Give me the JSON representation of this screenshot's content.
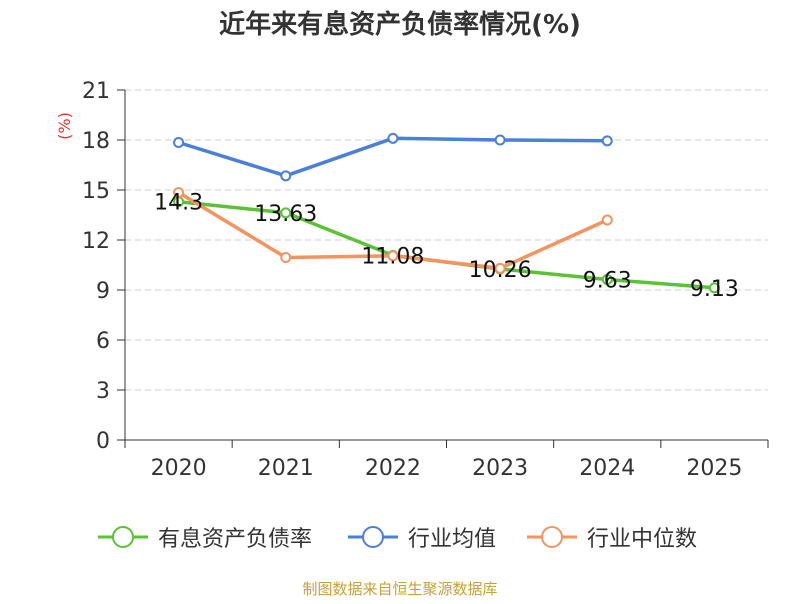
{
  "chart_data": {
    "type": "line",
    "title": "近年来有息资产负债率情况(%)",
    "yunit": "(%)",
    "categories": [
      "2020",
      "2021",
      "2022",
      "2023",
      "2024",
      "2025"
    ],
    "ylim": [
      0,
      21
    ],
    "yticks": [
      0,
      3,
      6,
      9,
      12,
      15,
      18,
      21
    ],
    "grid": true,
    "legend_position": "bottom",
    "series": [
      {
        "name": "有息资产负债率",
        "color": "#5bc236",
        "values": [
          14.3,
          13.63,
          11.08,
          10.26,
          9.63,
          9.13
        ],
        "labels": [
          "14.3",
          "13.63",
          "11.08",
          "10.26",
          "9.63",
          "9.13"
        ]
      },
      {
        "name": "行业均值",
        "color": "#4a7fdc",
        "values": [
          17.85,
          15.85,
          18.1,
          18.0,
          17.95,
          null
        ]
      },
      {
        "name": "行业中位数",
        "color": "#f5935e",
        "values": [
          14.85,
          10.95,
          11.05,
          10.3,
          13.2,
          null
        ]
      }
    ],
    "source": "制图数据来自恒生聚源数据库"
  }
}
